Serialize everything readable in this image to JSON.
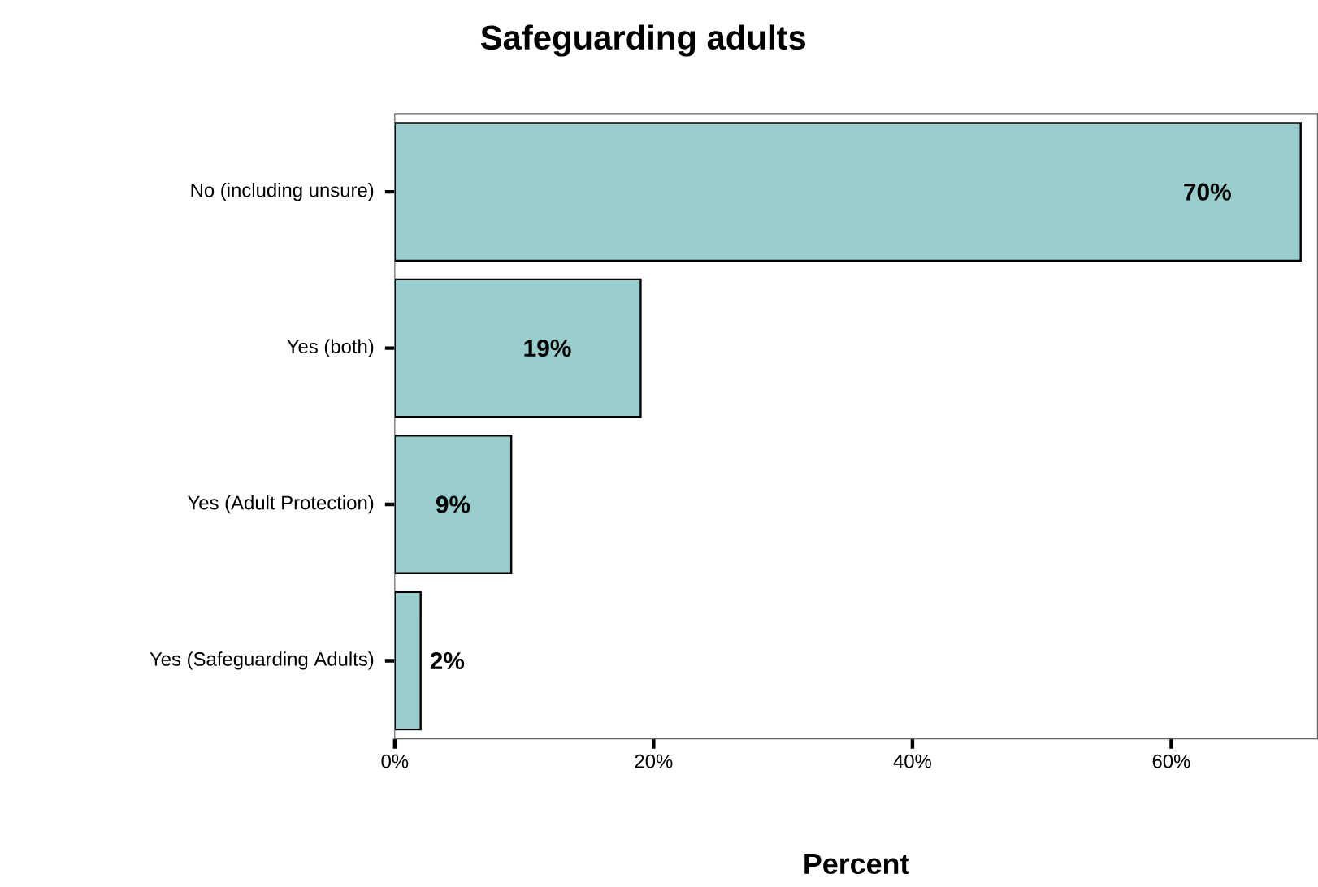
{
  "chart_data": {
    "type": "bar",
    "orientation": "horizontal",
    "title": "Safeguarding adults",
    "xlabel": "Percent",
    "categories": [
      "No (including unsure)",
      "Yes (both)",
      "Yes (Adult Protection)",
      "Yes (Safeguarding Adults)"
    ],
    "values": [
      70,
      19,
      9,
      2
    ],
    "value_labels": [
      "70%",
      "19%",
      "9%",
      "2%"
    ],
    "color": "#99cccc",
    "xlim": [
      0,
      71.3
    ],
    "xticks": [
      {
        "value": 0,
        "label": "0%"
      },
      {
        "value": 20,
        "label": "20%"
      },
      {
        "value": 40,
        "label": "40%"
      },
      {
        "value": 60,
        "label": "60%"
      }
    ]
  }
}
